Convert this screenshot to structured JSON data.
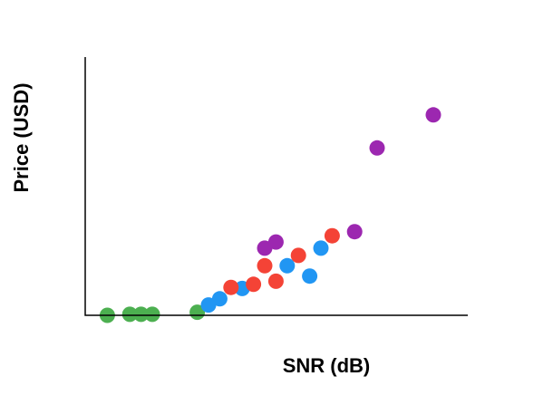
{
  "chart_data": {
    "type": "scatter",
    "title": "",
    "xlabel": "SNR (dB)",
    "ylabel": "Price (USD)",
    "xlim": [
      0,
      34
    ],
    "ylim": [
      0,
      24
    ],
    "grid": false,
    "legend": "none",
    "series": [
      {
        "color": "#4caf50",
        "points": [
          [
            1,
            0
          ],
          [
            3,
            0.1
          ],
          [
            4,
            0.1
          ],
          [
            5,
            0.1
          ],
          [
            9,
            0.3
          ]
        ]
      },
      {
        "color": "#2196f3",
        "points": [
          [
            10,
            1
          ],
          [
            11,
            1.6
          ],
          [
            13,
            2.6
          ],
          [
            17,
            4.8
          ],
          [
            19,
            3.8
          ],
          [
            20,
            6.5
          ]
        ]
      },
      {
        "color": "#f44336",
        "points": [
          [
            12,
            2.7
          ],
          [
            14,
            3
          ],
          [
            15,
            4.8
          ],
          [
            16,
            3.3
          ],
          [
            18,
            5.8
          ],
          [
            21,
            7.7
          ]
        ]
      },
      {
        "color": "#9c27b0",
        "points": [
          [
            15,
            6.5
          ],
          [
            16,
            7.1
          ],
          [
            23,
            8.1
          ],
          [
            25,
            16.2
          ],
          [
            30,
            19.4
          ]
        ]
      }
    ]
  }
}
